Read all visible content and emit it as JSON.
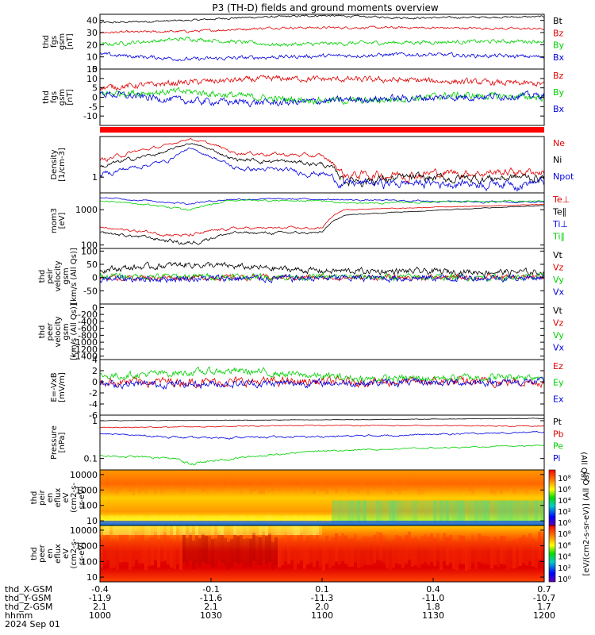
{
  "title": "P3 (TH-D) fields and ground moments overview",
  "colors": {
    "black": "#000000",
    "red": "#e00000",
    "green": "#00d000",
    "blue": "#0000e0"
  },
  "panels": [
    {
      "id": "fgs-total",
      "ylabel": [
        "thd",
        "fgs",
        "gsm",
        "[nT]"
      ],
      "ylim": [
        0,
        45
      ],
      "yticks": [
        0,
        10,
        20,
        30,
        40
      ],
      "legend": [
        {
          "label": "Bt",
          "color": "black"
        },
        {
          "label": "Bz",
          "color": "red"
        },
        {
          "label": "By",
          "color": "green"
        },
        {
          "label": "Bx",
          "color": "blue"
        }
      ]
    },
    {
      "id": "fgs-components",
      "ylabel": [
        "thd",
        "fgs",
        "gsm",
        "[nT]"
      ],
      "ylim": [
        -15,
        15
      ],
      "yticks": [
        -10,
        -5,
        0,
        5,
        10,
        15
      ],
      "legend": [
        {
          "label": "Bz",
          "color": "red"
        },
        {
          "label": "By",
          "color": "green"
        },
        {
          "label": "Bx",
          "color": "blue"
        }
      ]
    },
    {
      "id": "density",
      "ylabel": [
        "Density",
        "[1/cm-3]"
      ],
      "ylim": [
        0.5,
        6
      ],
      "yticks": [
        1
      ],
      "legend": [
        {
          "label": "Ne",
          "color": "red"
        },
        {
          "label": "Ni",
          "color": "black"
        },
        {
          "label": "Npot",
          "color": "blue"
        }
      ]
    },
    {
      "id": "temperature",
      "ylabel": [
        "mom3",
        "[eV]"
      ],
      "ylim": [
        80,
        3000
      ],
      "yticks": [
        100,
        1000
      ],
      "legend": [
        {
          "label": "Te⊥",
          "color": "red"
        },
        {
          "label": "Te∥",
          "color": "black"
        },
        {
          "label": "Ti⊥",
          "color": "blue"
        },
        {
          "label": "Ti∥",
          "color": "green"
        }
      ]
    },
    {
      "id": "ion-velocity",
      "ylabel": [
        "thd",
        "peir",
        "velocity",
        "gsm",
        "[km/s (All Qs)]"
      ],
      "ylim": [
        -100,
        110
      ],
      "yticks": [
        -50,
        0,
        50,
        100
      ],
      "legend": [
        {
          "label": "Vt",
          "color": "black"
        },
        {
          "label": "Vz",
          "color": "red"
        },
        {
          "label": "Vy",
          "color": "green"
        },
        {
          "label": "Vx",
          "color": "blue"
        }
      ]
    },
    {
      "id": "electron-velocity",
      "ylabel": [
        "thd",
        "peer",
        "velocity",
        "gsm",
        "[km/s (All Qs)]"
      ],
      "ylim": [
        -1500,
        100
      ],
      "yticks": [
        -1400,
        -1200,
        -1000,
        -800,
        -600,
        -400,
        -200,
        0
      ],
      "legend": [
        {
          "label": "Vt",
          "color": "black"
        },
        {
          "label": "Vz",
          "color": "red"
        },
        {
          "label": "Vy",
          "color": "green"
        },
        {
          "label": "Vx",
          "color": "blue"
        }
      ]
    },
    {
      "id": "efield",
      "ylabel": [
        "E=-VxB",
        "[mV/m]"
      ],
      "ylim": [
        -6,
        4
      ],
      "yticks": [
        -6,
        -4,
        -2,
        0,
        2,
        4
      ],
      "legend": [
        {
          "label": "Ez",
          "color": "red"
        },
        {
          "label": "Ey",
          "color": "green"
        },
        {
          "label": "Ex",
          "color": "blue"
        }
      ]
    },
    {
      "id": "pressure",
      "ylabel": [
        "Pressure",
        "[nPa]"
      ],
      "ylim": [
        0.05,
        1.4
      ],
      "yticks": [
        0.1,
        1.0
      ],
      "legend": [
        {
          "label": "Pt",
          "color": "black"
        },
        {
          "label": "Pb",
          "color": "red"
        },
        {
          "label": "Pe",
          "color": "green"
        },
        {
          "label": "Pi",
          "color": "blue"
        }
      ],
      "side_note": "(All Qs)"
    },
    {
      "id": "ion-spectrogram",
      "ylabel": [
        "thd",
        "peir",
        "en",
        "eflux",
        "eV",
        "(cm2-s-",
        "sr-eV)"
      ],
      "ylim": [
        5,
        20000
      ],
      "yticks": [
        10,
        100,
        1000,
        10000
      ],
      "colorbar_ticks": [
        "10⁸",
        "10⁶",
        "10⁴",
        "10²",
        "10⁰"
      ]
    },
    {
      "id": "electron-spectrogram",
      "ylabel": [
        "thd",
        "peer",
        "en",
        "eflux",
        "eV",
        "(cm2-s-",
        "sr-eV)"
      ],
      "ylim": [
        5,
        20000
      ],
      "yticks": [
        10,
        100,
        1000,
        10000
      ],
      "colorbar_ticks": [
        "10⁸",
        "10⁶",
        "10⁴",
        "10²",
        "10⁰"
      ]
    }
  ],
  "colorbar_label": "[eV/(cm2-s-sr-eV)] (All Qs)",
  "time_axis": {
    "rows": [
      {
        "label": "thd_X-GSM",
        "values": [
          "-0.4",
          "-0.1",
          "0.1",
          "0.4",
          "0.7"
        ]
      },
      {
        "label": "thd_Y-GSM",
        "values": [
          "-11.9",
          "-11.6",
          "-11.3",
          "-11.0",
          "-10.7"
        ]
      },
      {
        "label": "thd_Z-GSM",
        "values": [
          "2.1",
          "2.1",
          "2.0",
          "1.8",
          "1.7"
        ]
      },
      {
        "label": "hhmm",
        "values": [
          "1000",
          "1030",
          "1100",
          "1130",
          "1200"
        ]
      }
    ],
    "date": "2024 Sep 01",
    "start_minutes": 0,
    "end_minutes": 120
  }
}
